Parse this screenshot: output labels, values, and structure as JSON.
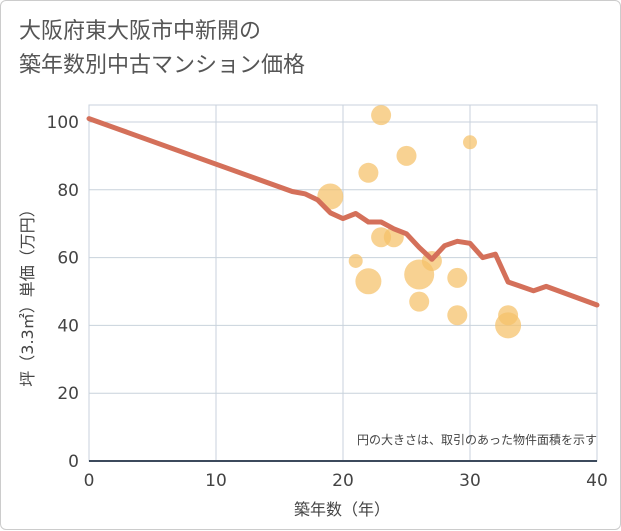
{
  "title": "大阪府東大阪市中新開の\n築年数別中古マンション価格",
  "chart_data": {
    "type": "scatter",
    "xlabel": "築年数（年）",
    "ylabel": "坪（3.3㎡）単価（万円）",
    "xlim": [
      0,
      40
    ],
    "ylim": [
      0,
      105
    ],
    "xticks": [
      0,
      10,
      20,
      30,
      40
    ],
    "yticks": [
      0,
      20,
      40,
      60,
      80,
      100
    ],
    "grid": true,
    "note": "円の大きさは、取引のあった物件面積を示す",
    "colors": {
      "line": "#d4705a",
      "bubble": "#f5c168"
    },
    "trend_line": [
      [
        0,
        101
      ],
      [
        16,
        79.5
      ],
      [
        17,
        78.8
      ],
      [
        18,
        77
      ],
      [
        19,
        73.2
      ],
      [
        20,
        71.5
      ],
      [
        21,
        73
      ],
      [
        22,
        70.5
      ],
      [
        23,
        70.5
      ],
      [
        24,
        68.5
      ],
      [
        25,
        67
      ],
      [
        26,
        63
      ],
      [
        27,
        59.5
      ],
      [
        28,
        63.5
      ],
      [
        29,
        64.8
      ],
      [
        30,
        64.2
      ],
      [
        31,
        60
      ],
      [
        32,
        61
      ],
      [
        33,
        52.8
      ],
      [
        34,
        51.5
      ],
      [
        35,
        50.2
      ],
      [
        36,
        51.5
      ],
      [
        40,
        46
      ]
    ],
    "bubbles": [
      {
        "x": 19,
        "y": 78,
        "size": 3
      },
      {
        "x": 21,
        "y": 59,
        "size": 1
      },
      {
        "x": 22,
        "y": 85,
        "size": 2
      },
      {
        "x": 22,
        "y": 53,
        "size": 3
      },
      {
        "x": 23,
        "y": 102,
        "size": 2
      },
      {
        "x": 23,
        "y": 66,
        "size": 2
      },
      {
        "x": 24,
        "y": 66,
        "size": 2
      },
      {
        "x": 25,
        "y": 90,
        "size": 2
      },
      {
        "x": 26,
        "y": 55,
        "size": 4
      },
      {
        "x": 26,
        "y": 47,
        "size": 2
      },
      {
        "x": 27,
        "y": 59,
        "size": 2
      },
      {
        "x": 29,
        "y": 54,
        "size": 2
      },
      {
        "x": 29,
        "y": 43,
        "size": 2
      },
      {
        "x": 30,
        "y": 94,
        "size": 1
      },
      {
        "x": 33,
        "y": 43,
        "size": 2
      },
      {
        "x": 33,
        "y": 40,
        "size": 3
      }
    ]
  }
}
